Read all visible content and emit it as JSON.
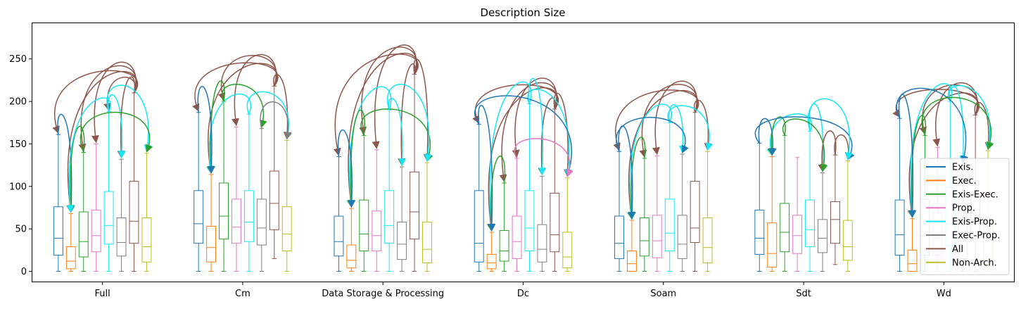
{
  "chart_data": {
    "type": "box",
    "title": "Description Size",
    "xlabel": "",
    "ylabel": "",
    "ylim": [
      -12,
      292
    ],
    "yticks": [
      0,
      50,
      100,
      150,
      200,
      250
    ],
    "grid": false,
    "legend_position": "lower-right",
    "categories": [
      "Full",
      "Cm",
      "Data Storage & Processing",
      "Dc",
      "Soam",
      "Sdt",
      "Wd"
    ],
    "series": [
      {
        "name": "Exis.",
        "color": "#1f77b4",
        "boxes": [
          {
            "min": 0,
            "q1": 19,
            "median": 39,
            "q3": 76,
            "max": 161
          },
          {
            "min": 0,
            "q1": 33,
            "median": 56,
            "q3": 95,
            "max": 187
          },
          {
            "min": 0,
            "q1": 18,
            "median": 35,
            "q3": 65,
            "max": 135
          },
          {
            "min": 0,
            "q1": 11,
            "median": 33,
            "q3": 95,
            "max": 173
          },
          {
            "min": 0,
            "q1": 15,
            "median": 33,
            "q3": 65,
            "max": 141
          },
          {
            "min": 0,
            "q1": 20,
            "median": 39,
            "q3": 72,
            "max": 151
          },
          {
            "min": 0,
            "q1": 19,
            "median": 43,
            "q3": 84,
            "max": 180
          }
        ]
      },
      {
        "name": "Exec.",
        "color": "#ff7f0e",
        "boxes": [
          {
            "min": 0,
            "q1": 3,
            "median": 12,
            "q3": 29,
            "max": 68
          },
          {
            "min": 0,
            "q1": 11,
            "median": 28,
            "q3": 53,
            "max": 114
          },
          {
            "min": 0,
            "q1": 4,
            "median": 13,
            "q3": 31,
            "max": 74
          },
          {
            "min": 0,
            "q1": 3,
            "median": 10,
            "q3": 20,
            "max": 46
          },
          {
            "min": 0,
            "q1": 0,
            "median": 9,
            "q3": 24,
            "max": 60
          },
          {
            "min": 0,
            "q1": 5,
            "median": 21,
            "q3": 57,
            "max": 135
          },
          {
            "min": 0,
            "q1": 0,
            "median": 9,
            "q3": 25,
            "max": 62
          }
        ]
      },
      {
        "name": "Exis-Exec.",
        "color": "#2ca02c",
        "boxes": [
          {
            "min": 0,
            "q1": 17,
            "median": 35,
            "q3": 70,
            "max": 140
          },
          {
            "min": 0,
            "q1": 38,
            "median": 65,
            "q3": 104,
            "max": 200
          },
          {
            "min": 0,
            "q1": 24,
            "median": 44,
            "q3": 84,
            "max": 160
          },
          {
            "min": 0,
            "q1": 12,
            "median": 24,
            "q3": 48,
            "max": 104
          },
          {
            "min": 0,
            "q1": 18,
            "median": 36,
            "q3": 63,
            "max": 133
          },
          {
            "min": 0,
            "q1": 23,
            "median": 46,
            "q3": 80,
            "max": 160
          },
          {
            "min": 0,
            "q1": 19,
            "median": 42,
            "q3": 85,
            "max": 160
          }
        ]
      },
      {
        "name": "Prop.",
        "color": "#e377c2",
        "boxes": [
          {
            "min": 0,
            "q1": 23,
            "median": 42,
            "q3": 72,
            "max": 150
          },
          {
            "min": 0,
            "q1": 33,
            "median": 52,
            "q3": 85,
            "max": 170
          },
          {
            "min": 0,
            "q1": 24,
            "median": 42,
            "q3": 71,
            "max": 143
          },
          {
            "min": 0,
            "q1": 15,
            "median": 35,
            "q3": 65,
            "max": 133
          },
          {
            "min": 0,
            "q1": 16,
            "median": 36,
            "q3": 66,
            "max": 136
          },
          {
            "min": 0,
            "q1": 21,
            "median": 42,
            "q3": 66,
            "max": 134
          },
          {
            "min": 0,
            "q1": 19,
            "median": 39,
            "q3": 69,
            "max": 146
          }
        ]
      },
      {
        "name": "Exis-Prop.",
        "color": "#17e6f5",
        "boxes": [
          {
            "min": 0,
            "q1": 32,
            "median": 54,
            "q3": 94,
            "max": 188
          },
          {
            "min": 0,
            "q1": 35,
            "median": 58,
            "q3": 95,
            "max": 185
          },
          {
            "min": 0,
            "q1": 33,
            "median": 54,
            "q3": 95,
            "max": 190
          },
          {
            "min": 0,
            "q1": 24,
            "median": 51,
            "q3": 95,
            "max": 197
          },
          {
            "min": 0,
            "q1": 24,
            "median": 45,
            "q3": 85,
            "max": 175
          },
          {
            "min": 0,
            "q1": 29,
            "median": 49,
            "q3": 84,
            "max": 165
          },
          {
            "min": 0,
            "q1": 30,
            "median": 56,
            "q3": 99,
            "max": 200
          }
        ]
      },
      {
        "name": "Exec-Prop.",
        "color": "#7f7f7f",
        "boxes": [
          {
            "min": 0,
            "q1": 18,
            "median": 34,
            "q3": 63,
            "max": 132
          },
          {
            "min": 0,
            "q1": 31,
            "median": 51,
            "q3": 85,
            "max": 168
          },
          {
            "min": 0,
            "q1": 14,
            "median": 32,
            "q3": 58,
            "max": 123
          },
          {
            "min": 0,
            "q1": 11,
            "median": 26,
            "q3": 55,
            "max": 112
          },
          {
            "min": 0,
            "q1": 15,
            "median": 32,
            "q3": 66,
            "max": 138
          },
          {
            "min": 0,
            "q1": 22,
            "median": 39,
            "q3": 61,
            "max": 116
          },
          {
            "min": 0,
            "q1": 15,
            "median": 39,
            "q3": 60,
            "max": 126
          }
        ]
      },
      {
        "name": "All",
        "color": "#8c564b",
        "boxes": [
          {
            "min": 0,
            "q1": 33,
            "median": 59,
            "q3": 106,
            "max": 210
          },
          {
            "min": 15,
            "q1": 49,
            "median": 80,
            "q3": 118,
            "max": 218
          },
          {
            "min": 0,
            "q1": 38,
            "median": 70,
            "q3": 117,
            "max": 232
          },
          {
            "min": 0,
            "q1": 23,
            "median": 43,
            "q3": 92,
            "max": 191
          },
          {
            "min": 0,
            "q1": 34,
            "median": 51,
            "q3": 106,
            "max": 187
          },
          {
            "min": 8,
            "q1": 33,
            "median": 61,
            "q3": 82,
            "max": 137
          },
          {
            "min": 0,
            "q1": 38,
            "median": 61,
            "q3": 92,
            "max": 184
          }
        ]
      },
      {
        "name": "Non-Arch.",
        "color": "#bcbd22",
        "boxes": [
          {
            "min": 0,
            "q1": 11,
            "median": 29,
            "q3": 63,
            "max": 139
          },
          {
            "min": 0,
            "q1": 24,
            "median": 44,
            "q3": 76,
            "max": 154
          },
          {
            "min": 0,
            "q1": 10,
            "median": 26,
            "q3": 58,
            "max": 128
          },
          {
            "min": 0,
            "q1": 4,
            "median": 17,
            "q3": 46,
            "max": 110
          },
          {
            "min": 0,
            "q1": 10,
            "median": 28,
            "q3": 63,
            "max": 141
          },
          {
            "min": 0,
            "q1": 13,
            "median": 29,
            "q3": 60,
            "max": 130
          },
          {
            "min": 0,
            "q1": 7,
            "median": 14,
            "q3": 59,
            "max": 142
          }
        ]
      }
    ],
    "significance_arrows": [
      [
        [
          6,
          0
        ],
        [
          6,
          1
        ],
        [
          6,
          2
        ],
        [
          6,
          3
        ],
        [
          6,
          4
        ],
        [
          6,
          5
        ],
        [
          0,
          1
        ],
        [
          2,
          1
        ],
        [
          4,
          1
        ],
        [
          4,
          5
        ],
        [
          4,
          7
        ],
        [
          2,
          7
        ]
      ],
      [
        [
          6,
          0
        ],
        [
          6,
          1
        ],
        [
          6,
          2
        ],
        [
          6,
          3
        ],
        [
          6,
          7
        ],
        [
          4,
          1
        ],
        [
          2,
          1
        ],
        [
          0,
          1
        ],
        [
          2,
          5
        ],
        [
          4,
          7
        ],
        [
          5,
          7
        ]
      ],
      [
        [
          6,
          0
        ],
        [
          6,
          1
        ],
        [
          6,
          2
        ],
        [
          6,
          3
        ],
        [
          6,
          5
        ],
        [
          6,
          7
        ],
        [
          4,
          1
        ],
        [
          2,
          1
        ],
        [
          4,
          5
        ],
        [
          2,
          7
        ],
        [
          4,
          7
        ],
        [
          0,
          1
        ]
      ],
      [
        [
          6,
          0
        ],
        [
          6,
          1
        ],
        [
          6,
          2
        ],
        [
          6,
          3
        ],
        [
          6,
          5
        ],
        [
          6,
          7
        ],
        [
          4,
          1
        ],
        [
          2,
          1
        ],
        [
          4,
          7
        ],
        [
          0,
          7
        ],
        [
          0,
          1
        ],
        [
          4,
          5
        ],
        [
          3,
          7
        ]
      ],
      [
        [
          6,
          0
        ],
        [
          6,
          1
        ],
        [
          6,
          2
        ],
        [
          6,
          3
        ],
        [
          6,
          7
        ],
        [
          4,
          1
        ],
        [
          2,
          1
        ],
        [
          0,
          1
        ],
        [
          4,
          7
        ],
        [
          4,
          5
        ],
        [
          0,
          5
        ]
      ],
      [
        [
          4,
          1
        ],
        [
          2,
          1
        ],
        [
          0,
          1
        ],
        [
          4,
          5
        ],
        [
          0,
          7
        ],
        [
          6,
          7
        ],
        [
          6,
          5
        ],
        [
          4,
          7
        ],
        [
          2,
          5
        ]
      ],
      [
        [
          6,
          0
        ],
        [
          6,
          1
        ],
        [
          6,
          2
        ],
        [
          6,
          3
        ],
        [
          6,
          7
        ],
        [
          4,
          1
        ],
        [
          2,
          1
        ],
        [
          0,
          1
        ],
        [
          4,
          7
        ],
        [
          4,
          5
        ],
        [
          0,
          5
        ],
        [
          2,
          7
        ]
      ]
    ]
  }
}
